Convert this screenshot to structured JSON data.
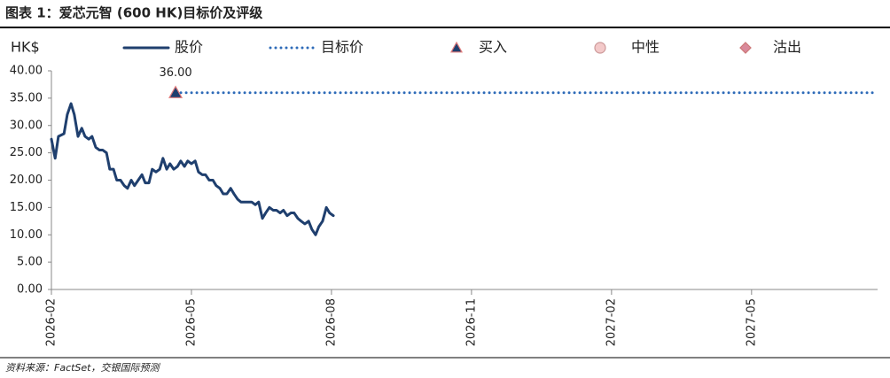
{
  "chart_data": {
    "type": "line",
    "title": "图表 1：爱芯元智 (600 HK)目标价及评级",
    "y_label": "HK$",
    "source": "资料来源：FactSet，交银国际预测",
    "series": [
      {
        "name": "股价",
        "color": "#1f3f6e",
        "style": "solid",
        "x": [
          0,
          0.08,
          0.15,
          0.27,
          0.34,
          0.42,
          0.49,
          0.57,
          0.65,
          0.72,
          0.8,
          0.87,
          0.95,
          1.03,
          1.1,
          1.18,
          1.25,
          1.33,
          1.4,
          1.48,
          1.56,
          1.63,
          1.71,
          1.78,
          1.86,
          1.94,
          2.01,
          2.09,
          2.16,
          2.24,
          2.32,
          2.39,
          2.47,
          2.54,
          2.62,
          2.7,
          2.77,
          2.85,
          2.92,
          3,
          3.08,
          3.15,
          3.23,
          3.3,
          3.38,
          3.46,
          3.53,
          3.61,
          3.68,
          3.76,
          3.84,
          3.91,
          3.99,
          4.06,
          4.14,
          4.21,
          4.29,
          4.37,
          4.44,
          4.52,
          4.59,
          4.67,
          4.75,
          4.82,
          4.9,
          4.97,
          5.05,
          5.13,
          5.2,
          5.28,
          5.35,
          5.43,
          5.51,
          5.58,
          5.66,
          5.73,
          5.81,
          5.89,
          5.96,
          6.04
        ],
        "values": [
          27.5,
          24,
          28,
          28.5,
          32,
          34,
          32,
          28,
          29.5,
          28,
          27.5,
          28,
          26,
          25.5,
          25.5,
          25,
          22,
          22,
          20,
          20,
          19,
          18.5,
          20,
          19,
          20,
          21,
          19.5,
          19.5,
          22,
          21.5,
          22,
          24,
          22,
          23,
          22,
          22.5,
          23.5,
          22.5,
          23.5,
          23,
          23.5,
          21.5,
          21,
          21,
          20,
          20,
          19,
          18.5,
          17.5,
          17.5,
          18.5,
          17.5,
          16.5,
          16,
          16,
          16,
          16,
          15.5,
          16,
          13,
          14,
          15,
          14.5,
          14.5,
          14,
          14.5,
          13.5,
          14,
          14,
          13,
          12.5,
          12,
          12.5,
          11,
          10,
          11.5,
          12.5,
          15,
          14,
          13.5
        ]
      },
      {
        "name": "目标价",
        "color": "#2e6bb8",
        "style": "dotted",
        "x": [
          2.66,
          17.7
        ],
        "values": [
          36,
          36
        ]
      }
    ],
    "ratings": [
      {
        "name": "买入",
        "marker": "triangle",
        "color": "#1f3f6e",
        "edge": "#e07a7a",
        "x": [
          2.66
        ],
        "values": [
          36
        ],
        "value_labels": [
          "36.00"
        ]
      },
      {
        "name": "中性",
        "marker": "circle",
        "color": "#f3c9c9",
        "edge": "#c99",
        "x": [],
        "values": []
      },
      {
        "name": "沽出",
        "marker": "diamond",
        "color": "#d9899a",
        "edge": "#c77",
        "x": [],
        "values": []
      }
    ],
    "xlim": [
      0,
      17.7
    ],
    "xticks": [
      {
        "value": 0,
        "label": "2026-02"
      },
      {
        "value": 3,
        "label": "2026-05"
      },
      {
        "value": 6,
        "label": "2026-08"
      },
      {
        "value": 9,
        "label": "2026-11"
      },
      {
        "value": 12,
        "label": "2027-02"
      },
      {
        "value": 15,
        "label": "2027-05"
      }
    ],
    "ylim": [
      0,
      40
    ],
    "yticks": [
      {
        "value": 0,
        "label": "0.00"
      },
      {
        "value": 5,
        "label": "5.00"
      },
      {
        "value": 10,
        "label": "10.00"
      },
      {
        "value": 15,
        "label": "15.00"
      },
      {
        "value": 20,
        "label": "20.00"
      },
      {
        "value": 25,
        "label": "25.00"
      },
      {
        "value": 30,
        "label": "30.00"
      },
      {
        "value": 35,
        "label": "35.00"
      },
      {
        "value": 40,
        "label": "40.00"
      }
    ]
  }
}
